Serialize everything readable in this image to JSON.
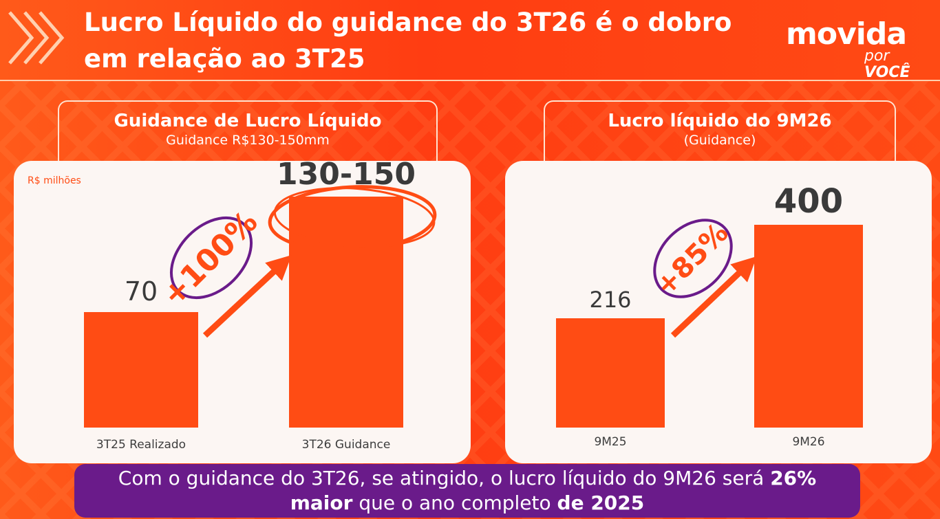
{
  "header": {
    "title_line1": "Lucro Líquido do guidance do 3T26 é o dobro",
    "title_line2": "em relação ao 3T25"
  },
  "logo": {
    "brand": "movida",
    "tagline_1": "por",
    "tagline_2": "VOCÊ"
  },
  "colors": {
    "accent": "#ff4c14",
    "purple": "#6a1b8a",
    "panel": "#fcf6f3"
  },
  "chart_data": [
    {
      "type": "bar",
      "title": "Guidance de Lucro Líquido",
      "subtitle": "Guidance R$130-150mm",
      "ylabel": "R$ milhões",
      "categories": [
        "3T25 Realizado",
        "3T26 Guidance"
      ],
      "values": [
        70,
        140
      ],
      "value_labels": [
        "70",
        "130-150"
      ],
      "growth_label": "+100%",
      "ylim": [
        0,
        175
      ]
    },
    {
      "type": "bar",
      "title": "Lucro líquido do 9M26",
      "subtitle": "(Guidance)",
      "categories": [
        "9M25",
        "9M26"
      ],
      "values": [
        216,
        400
      ],
      "value_labels": [
        "216",
        "400"
      ],
      "growth_label": "+85%",
      "ylim": [
        0,
        500
      ]
    }
  ],
  "footer": {
    "part1": "Com o guidance do 3T26, se atingido, o lucro líquido do 9M26 será ",
    "bold1": "26%",
    "bold2": "maior",
    "part2": " que o ano completo ",
    "bold3": "de 2025"
  }
}
